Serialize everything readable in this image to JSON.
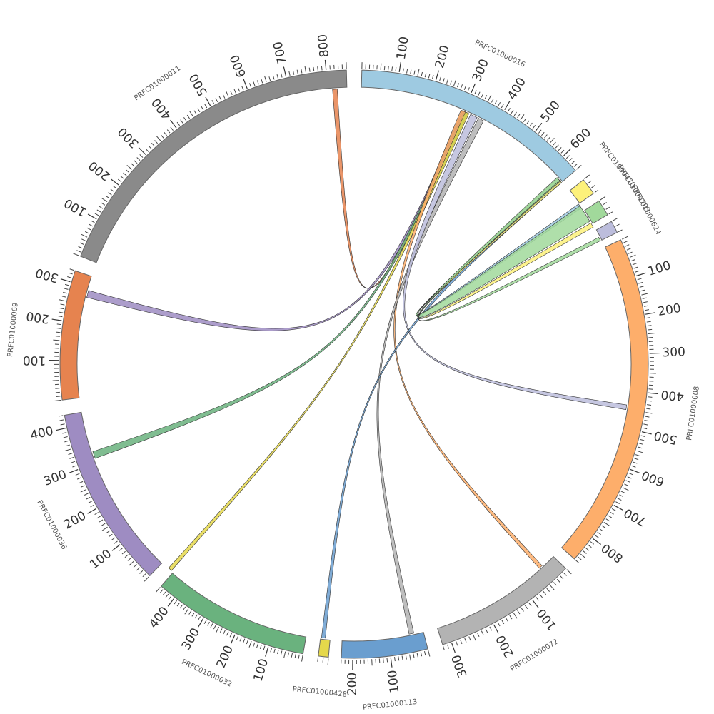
{
  "diagram": {
    "type": "circos",
    "contigs": [
      {
        "name": "PRFC01000016",
        "length": 650,
        "color": "#9ecae1",
        "start_deg": 1.5,
        "end_deg": 48.8,
        "tick_step": 100
      },
      {
        "name": "PRFC01000470",
        "length": 30,
        "color": "#fdf17a",
        "start_deg": 51.2,
        "end_deg": 54.5,
        "tick_step": 0
      },
      {
        "name": "PRFC01000703",
        "length": 30,
        "color": "#a1d99b",
        "start_deg": 56.3,
        "end_deg": 59.5,
        "tick_step": 0
      },
      {
        "name": "PRFC01000624",
        "length": 20,
        "color": "#bcbddc",
        "start_deg": 61.0,
        "end_deg": 63.4,
        "tick_step": 0
      },
      {
        "name": "PRFC01000008",
        "length": 870,
        "color": "#fdae6b",
        "start_deg": 65.0,
        "end_deg": 131.5,
        "tick_step": 100
      },
      {
        "name": "PRFC01000072",
        "length": 320,
        "color": "#b3b3b3",
        "start_deg": 134.0,
        "end_deg": 162.5,
        "tick_step": 100
      },
      {
        "name": "PRFC01000113",
        "length": 230,
        "color": "#6a9ecf",
        "start_deg": 165.5,
        "end_deg": 182.5,
        "tick_step": 100
      },
      {
        "name": "PRFC01000428",
        "length": 20,
        "color": "#e5d84b",
        "start_deg": 185.0,
        "end_deg": 187.0,
        "tick_step": 0
      },
      {
        "name": "PRFC01000032",
        "length": 450,
        "color": "#6ab27e",
        "start_deg": 190.0,
        "end_deg": 221.0,
        "tick_step": 100
      },
      {
        "name": "PRFC01000036",
        "length": 430,
        "color": "#9e8cc2",
        "start_deg": 224.0,
        "end_deg": 260.0,
        "tick_step": 100
      },
      {
        "name": "PRFC01000069",
        "length": 330,
        "color": "#e6834f",
        "start_deg": 263.0,
        "end_deg": 288.5,
        "tick_step": 100
      },
      {
        "name": "PRFC01000011",
        "length": 850,
        "color": "#8a8a8a",
        "start_deg": 291.5,
        "end_deg": 358.5,
        "tick_step": 100
      }
    ],
    "links": [
      {
        "source": "PRFC01000016",
        "target": "PRFC01000011",
        "color": "#e6834f"
      },
      {
        "source": "PRFC01000016",
        "target": "PRFC01000069",
        "color": "#9e8cc2"
      },
      {
        "source": "PRFC01000016",
        "target": "PRFC01000036",
        "color": "#6ab27e"
      },
      {
        "source": "PRFC01000016",
        "target": "PRFC01000032",
        "color": "#e5d84b"
      },
      {
        "source": "PRFC01000016",
        "target": "PRFC01000072",
        "color": "#fdae6b"
      },
      {
        "source": "PRFC01000016",
        "target": "PRFC01000113",
        "color": "#b3b3b3"
      },
      {
        "source": "PRFC01000016",
        "target": "PRFC01000008",
        "color": "#bcbddc"
      },
      {
        "source": "PRFC01000016",
        "target": "PRFC01000428",
        "color": "#6a9ecf"
      },
      {
        "source": "PRFC01000016",
        "target": "PRFC01000470",
        "color": "#9ecae1"
      },
      {
        "source": "PRFC01000016",
        "target": "PRFC01000470",
        "color": "#fdf17a"
      },
      {
        "source": "PRFC01000016",
        "target": "PRFC01000703",
        "color": "#a1d99b"
      },
      {
        "source": "PRFC01000016",
        "target": "PRFC01000624",
        "color": "#a1d99b"
      }
    ]
  }
}
